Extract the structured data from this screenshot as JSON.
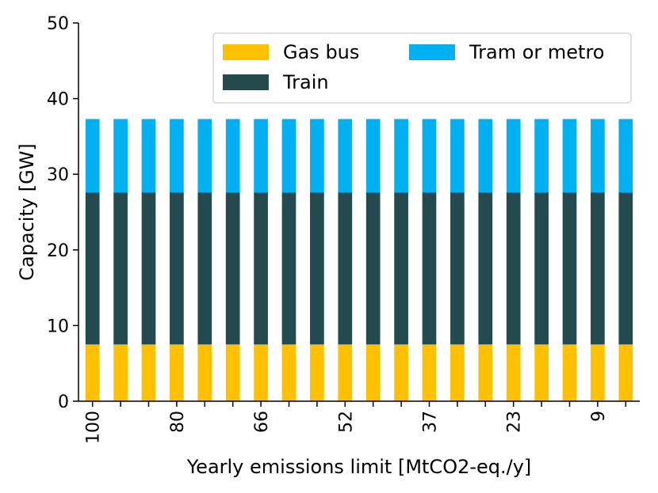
{
  "chart_data": {
    "type": "bar",
    "stacked": true,
    "xlabel": "Yearly emissions limit [MtCO2-eq./y]",
    "ylabel": "Capacity [GW]",
    "ylim": [
      0,
      50
    ],
    "yticks": [
      "0",
      "10",
      "20",
      "30",
      "40",
      "50"
    ],
    "xtick_labels": [
      "100",
      "80",
      "66",
      "52",
      "37",
      "23",
      "9"
    ],
    "xtick_label_positions": [
      0,
      3,
      6,
      9,
      12,
      15,
      18
    ],
    "n_bars": 20,
    "legend_position": "top-right",
    "series": [
      {
        "name": "Gas bus",
        "color": "#FFC000",
        "values": [
          7.5,
          7.5,
          7.5,
          7.5,
          7.5,
          7.5,
          7.5,
          7.5,
          7.5,
          7.5,
          7.5,
          7.5,
          7.5,
          7.5,
          7.5,
          7.5,
          7.5,
          7.5,
          7.5,
          7.5
        ]
      },
      {
        "name": "Train",
        "color": "#234A4E",
        "values": [
          20.1,
          20.1,
          20.1,
          20.1,
          20.1,
          20.1,
          20.1,
          20.1,
          20.1,
          20.1,
          20.1,
          20.1,
          20.1,
          20.1,
          20.1,
          20.1,
          20.1,
          20.1,
          20.1,
          20.1
        ]
      },
      {
        "name": "Tram or metro",
        "color": "#00B0F0",
        "values": [
          9.7,
          9.7,
          9.7,
          9.7,
          9.7,
          9.7,
          9.7,
          9.7,
          9.7,
          9.7,
          9.7,
          9.7,
          9.7,
          9.7,
          9.7,
          9.7,
          9.7,
          9.7,
          9.7,
          9.7
        ]
      }
    ]
  }
}
